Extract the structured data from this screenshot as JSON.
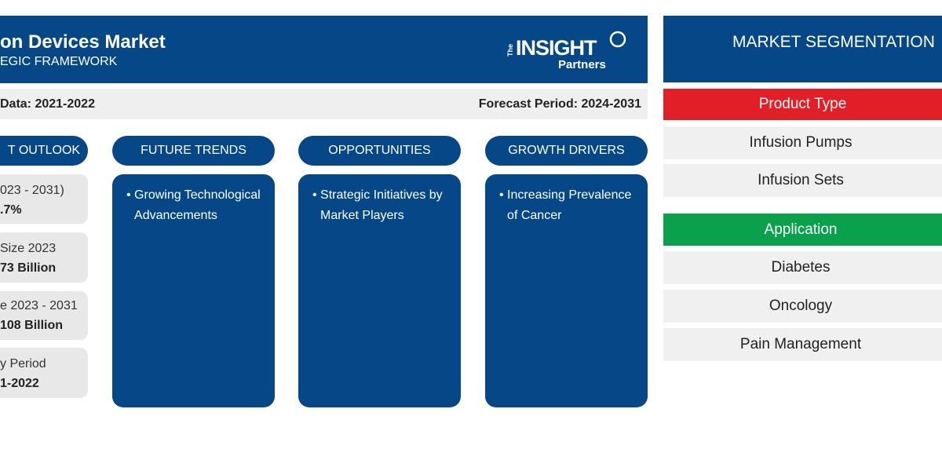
{
  "header": {
    "title": "on Devices Market",
    "subtitle": "EGIC FRAMEWORK",
    "logo": {
      "prefix": "The",
      "main": "INSIGHT",
      "sub": "Partners"
    }
  },
  "period_bar": {
    "historical": "Data: 2021-2022",
    "forecast": "Forecast Period: 2024-2031"
  },
  "columns": [
    {
      "title": "T OUTLOOK"
    },
    {
      "title": "FUTURE TRENDS",
      "items": [
        "Growing Technological Advancements"
      ]
    },
    {
      "title": "OPPORTUNITIES",
      "items": [
        "Strategic Initiatives by Market Players"
      ]
    },
    {
      "title": "GROWTH DRIVERS",
      "items": [
        "Increasing Prevalence of Cancer"
      ]
    }
  ],
  "outlook": [
    {
      "label": "023 - 2031)",
      "value": ".7%"
    },
    {
      "label": "Size 2023",
      "value": "73 Billion"
    },
    {
      "label": "e 2023 - 2031",
      "value": "108 Billion"
    },
    {
      "label": "y Period",
      "value": "1-2022"
    }
  ],
  "segmentation": {
    "title": "MARKET SEGMENTATION",
    "groups": [
      {
        "name": "Product Type",
        "items": [
          "Infusion Pumps",
          "Infusion Sets"
        ]
      },
      {
        "name": "Application",
        "items": [
          "Diabetes",
          "Oncology",
          "Pain Management"
        ]
      }
    ]
  }
}
